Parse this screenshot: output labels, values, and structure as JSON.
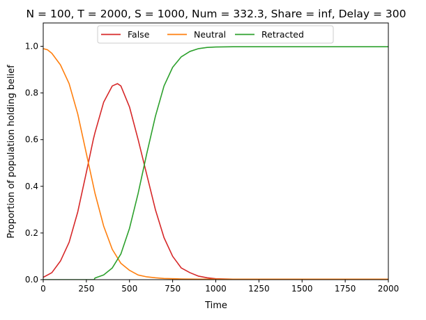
{
  "chart_data": {
    "type": "line",
    "title": "N = 100, T = 2000, S = 1000, Num = 332.3, Share = inf, Delay = 300",
    "xlabel": "Time",
    "ylabel": "Proportion of population holding belief",
    "xlim": [
      0,
      2000
    ],
    "ylim": [
      0,
      1.1
    ],
    "xticks": [
      0,
      250,
      500,
      750,
      1000,
      1250,
      1500,
      1750,
      2000
    ],
    "yticks": [
      0.0,
      0.2,
      0.4,
      0.6,
      0.8,
      1.0
    ],
    "xtick_labels": [
      "0",
      "250",
      "500",
      "750",
      "1000",
      "1250",
      "1500",
      "1750",
      "2000"
    ],
    "ytick_labels": [
      "0.0",
      "0.2",
      "0.4",
      "0.6",
      "0.8",
      "1.0"
    ],
    "grid": false,
    "legend_position": "top-center",
    "series": [
      {
        "name": "False",
        "color": "#d62728",
        "x": [
          0,
          50,
          100,
          150,
          200,
          250,
          290,
          300,
          350,
          400,
          430,
          450,
          500,
          550,
          600,
          650,
          700,
          750,
          800,
          850,
          900,
          950,
          1000,
          1100,
          1250,
          1500,
          1750,
          2000
        ],
        "y": [
          0.01,
          0.03,
          0.08,
          0.16,
          0.29,
          0.46,
          0.6,
          0.63,
          0.76,
          0.83,
          0.84,
          0.83,
          0.74,
          0.6,
          0.45,
          0.3,
          0.18,
          0.1,
          0.05,
          0.03,
          0.015,
          0.008,
          0.004,
          0.002,
          0.002,
          0.002,
          0.002,
          0.002
        ]
      },
      {
        "name": "Neutral",
        "color": "#ff7f0e",
        "x": [
          0,
          25,
          50,
          100,
          150,
          200,
          250,
          300,
          350,
          400,
          450,
          500,
          550,
          600,
          650,
          700,
          800,
          900,
          1000,
          1250,
          1500,
          1750,
          2000
        ],
        "y": [
          0.99,
          0.985,
          0.97,
          0.92,
          0.84,
          0.71,
          0.54,
          0.37,
          0.23,
          0.13,
          0.07,
          0.04,
          0.02,
          0.012,
          0.008,
          0.005,
          0.003,
          0.002,
          0.002,
          0.002,
          0.002,
          0.002,
          0.002
        ]
      },
      {
        "name": "Retracted",
        "color": "#2ca02c",
        "x": [
          0,
          100,
          200,
          295,
          300,
          350,
          400,
          450,
          500,
          550,
          600,
          650,
          700,
          750,
          800,
          850,
          900,
          950,
          1000,
          1100,
          1250,
          1500,
          1750,
          2000
        ],
        "y": [
          0.0,
          0.0,
          0.0,
          0.0,
          0.007,
          0.02,
          0.05,
          0.11,
          0.22,
          0.37,
          0.54,
          0.7,
          0.83,
          0.91,
          0.955,
          0.978,
          0.99,
          0.995,
          0.997,
          0.998,
          0.998,
          0.998,
          0.998,
          0.998
        ]
      }
    ]
  }
}
